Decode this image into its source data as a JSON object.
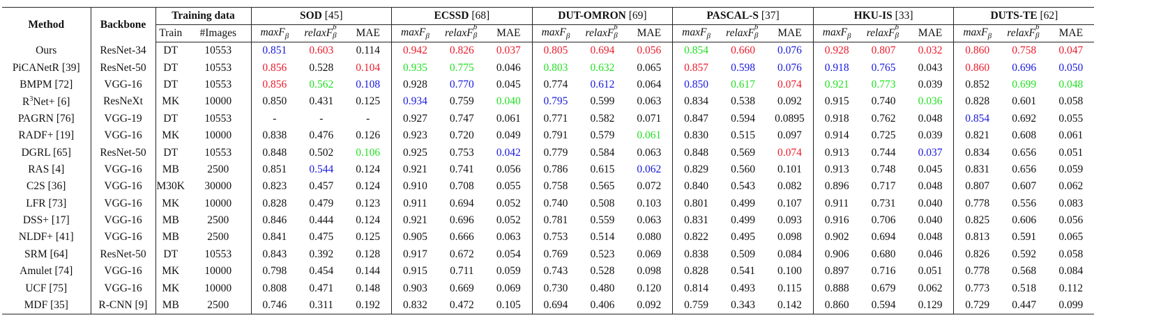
{
  "colors": {
    "r": "#ee1a2a",
    "g": "#22e022",
    "b": "#1818dd"
  },
  "header": {
    "method": "Method",
    "backbone": "Backbone",
    "training_data": "Training data",
    "train": "Train",
    "images": "#Images",
    "metrics": [
      {
        "main": "maxF",
        "sub": "β"
      },
      {
        "main": "relaxF",
        "sup": "b",
        "sub": "β"
      },
      {
        "main": "MAE"
      }
    ],
    "datasets": [
      {
        "name": "SOD",
        "ref": "[45]"
      },
      {
        "name": "ECSSD",
        "ref": "[68]"
      },
      {
        "name": "DUT-OMRON",
        "ref": "[69]"
      },
      {
        "name": "PASCAL-S",
        "ref": "[37]"
      },
      {
        "name": "HKU-IS",
        "ref": "[33]"
      },
      {
        "name": "DUTS-TE",
        "ref": "[62]"
      }
    ]
  },
  "rows": [
    {
      "method": {
        "pre": "Ours"
      },
      "backbone": "ResNet-34",
      "train": "DT",
      "images": "10553",
      "scores": [
        {
          "v": "0.851",
          "c": "b"
        },
        {
          "v": "0.603",
          "c": "r"
        },
        "0.114",
        {
          "v": "0.942",
          "c": "r"
        },
        {
          "v": "0.826",
          "c": "r"
        },
        {
          "v": "0.037",
          "c": "r"
        },
        {
          "v": "0.805",
          "c": "r"
        },
        {
          "v": "0.694",
          "c": "r"
        },
        {
          "v": "0.056",
          "c": "r"
        },
        {
          "v": "0.854",
          "c": "g"
        },
        {
          "v": "0.660",
          "c": "r"
        },
        {
          "v": "0.076",
          "c": "b"
        },
        {
          "v": "0.928",
          "c": "r"
        },
        {
          "v": "0.807",
          "c": "r"
        },
        {
          "v": "0.032",
          "c": "r"
        },
        {
          "v": "0.860",
          "c": "r"
        },
        {
          "v": "0.758",
          "c": "r"
        },
        {
          "v": "0.047",
          "c": "r"
        }
      ]
    },
    {
      "method": {
        "pre": "PiCANetR [39]"
      },
      "backbone": "ResNet-50",
      "train": "DT",
      "images": "10553",
      "scores": [
        {
          "v": "0.856",
          "c": "r"
        },
        "0.528",
        {
          "v": "0.104",
          "c": "r"
        },
        {
          "v": "0.935",
          "c": "g"
        },
        {
          "v": "0.775",
          "c": "g"
        },
        "0.046",
        {
          "v": "0.803",
          "c": "g"
        },
        {
          "v": "0.632",
          "c": "g"
        },
        "0.065",
        {
          "v": "0.857",
          "c": "r"
        },
        {
          "v": "0.598",
          "c": "b"
        },
        {
          "v": "0.076",
          "c": "b"
        },
        {
          "v": "0.918",
          "c": "b"
        },
        {
          "v": "0.765",
          "c": "b"
        },
        "0.043",
        {
          "v": "0.860",
          "c": "r"
        },
        {
          "v": "0.696",
          "c": "b"
        },
        {
          "v": "0.050",
          "c": "b"
        }
      ]
    },
    {
      "method": {
        "pre": "BMPM [72]"
      },
      "backbone": "VGG-16",
      "train": "DT",
      "images": "10553",
      "scores": [
        {
          "v": "0.856",
          "c": "r"
        },
        {
          "v": "0.562",
          "c": "g"
        },
        {
          "v": "0.108",
          "c": "b"
        },
        "0.928",
        {
          "v": "0.770",
          "c": "b"
        },
        "0.045",
        "0.774",
        {
          "v": "0.612",
          "c": "b"
        },
        "0.064",
        {
          "v": "0.850",
          "c": "b"
        },
        {
          "v": "0.617",
          "c": "g"
        },
        {
          "v": "0.074",
          "c": "r"
        },
        {
          "v": "0.921",
          "c": "g"
        },
        {
          "v": "0.773",
          "c": "g"
        },
        "0.039",
        "0.852",
        {
          "v": "0.699",
          "c": "g"
        },
        {
          "v": "0.048",
          "c": "g"
        }
      ]
    },
    {
      "method": {
        "pre": "R",
        "sup": "3",
        "post": "Net+ [6]"
      },
      "backbone": "ResNeXt",
      "train": "MK",
      "images": "10000",
      "scores": [
        "0.850",
        "0.431",
        "0.125",
        {
          "v": "0.934",
          "c": "b"
        },
        "0.759",
        {
          "v": "0.040",
          "c": "g"
        },
        {
          "v": "0.795",
          "c": "b"
        },
        "0.599",
        "0.063",
        "0.834",
        "0.538",
        "0.092",
        "0.915",
        "0.740",
        {
          "v": "0.036",
          "c": "g"
        },
        "0.828",
        "0.601",
        "0.058"
      ]
    },
    {
      "method": {
        "pre": "PAGRN [76]"
      },
      "backbone": "VGG-19",
      "train": "DT",
      "images": "10553",
      "scores": [
        "-",
        "-",
        "-",
        "0.927",
        "0.747",
        "0.061",
        "0.771",
        "0.582",
        "0.071",
        "0.847",
        "0.594",
        "0.0895",
        "0.918",
        "0.762",
        "0.048",
        {
          "v": "0.854",
          "c": "b"
        },
        "0.692",
        "0.055"
      ]
    },
    {
      "method": {
        "pre": "RADF+ [19]"
      },
      "backbone": "VGG-16",
      "train": "MK",
      "images": "10000",
      "scores": [
        "0.838",
        "0.476",
        "0.126",
        "0.923",
        "0.720",
        "0.049",
        "0.791",
        "0.579",
        {
          "v": "0.061",
          "c": "g"
        },
        "0.830",
        "0.515",
        "0.097",
        "0.914",
        "0.725",
        "0.039",
        "0.821",
        "0.608",
        "0.061"
      ]
    },
    {
      "method": {
        "pre": "DGRL [65]"
      },
      "backbone": "ResNet-50",
      "train": "DT",
      "images": "10553",
      "scores": [
        "0.848",
        "0.502",
        {
          "v": "0.106",
          "c": "g"
        },
        "0.925",
        "0.753",
        {
          "v": "0.042",
          "c": "b"
        },
        "0.779",
        "0.584",
        "0.063",
        "0.848",
        "0.569",
        {
          "v": "0.074",
          "c": "r"
        },
        "0.913",
        "0.744",
        {
          "v": "0.037",
          "c": "b"
        },
        "0.834",
        "0.656",
        "0.051"
      ]
    },
    {
      "method": {
        "pre": "RAS [4]"
      },
      "backbone": "VGG-16",
      "train": "MB",
      "images": "2500",
      "scores": [
        "0.851",
        {
          "v": "0.544",
          "c": "b"
        },
        "0.124",
        "0.921",
        "0.741",
        "0.056",
        "0.786",
        "0.615",
        {
          "v": "0.062",
          "c": "b"
        },
        "0.829",
        "0.560",
        "0.101",
        "0.913",
        "0.748",
        "0.045",
        "0.831",
        "0.656",
        "0.059"
      ]
    },
    {
      "method": {
        "pre": "C2S [36]"
      },
      "backbone": "VGG-16",
      "train": "M30K",
      "images": "30000",
      "scores": [
        "0.823",
        "0.457",
        "0.124",
        "0.910",
        "0.708",
        "0.055",
        "0.758",
        "0.565",
        "0.072",
        "0.840",
        "0.543",
        "0.082",
        "0.896",
        "0.717",
        "0.048",
        "0.807",
        "0.607",
        "0.062"
      ]
    },
    {
      "method": {
        "pre": "LFR [73]"
      },
      "backbone": "VGG-16",
      "train": "MK",
      "images": "10000",
      "scores": [
        "0.828",
        "0.479",
        "0.123",
        "0.911",
        "0.694",
        "0.052",
        "0.740",
        "0.508",
        "0.103",
        "0.801",
        "0.499",
        "0.107",
        "0.911",
        "0.731",
        "0.040",
        "0.778",
        "0.556",
        "0.083"
      ]
    },
    {
      "method": {
        "pre": "DSS+ [17]"
      },
      "backbone": "VGG-16",
      "train": "MB",
      "images": "2500",
      "scores": [
        "0.846",
        "0.444",
        "0.124",
        "0.921",
        "0.696",
        "0.052",
        "0.781",
        "0.559",
        "0.063",
        "0.831",
        "0.499",
        "0.093",
        "0.916",
        "0.706",
        "0.040",
        "0.825",
        "0.606",
        "0.056"
      ]
    },
    {
      "method": {
        "pre": "NLDF+ [41]"
      },
      "backbone": "VGG-16",
      "train": "MB",
      "images": "2500",
      "scores": [
        "0.841",
        "0.475",
        "0.125",
        "0.905",
        "0.666",
        "0.063",
        "0.753",
        "0.514",
        "0.080",
        "0.822",
        "0.495",
        "0.098",
        "0.902",
        "0.694",
        "0.048",
        "0.813",
        "0.591",
        "0.065"
      ]
    },
    {
      "method": {
        "pre": "SRM [64]"
      },
      "backbone": "ResNet-50",
      "train": "DT",
      "images": "10553",
      "scores": [
        "0.843",
        "0.392",
        "0.128",
        "0.917",
        "0.672",
        "0.054",
        "0.769",
        "0.523",
        "0.069",
        "0.838",
        "0.509",
        "0.084",
        "0.906",
        "0.680",
        "0.046",
        "0.826",
        "0.592",
        "0.058"
      ]
    },
    {
      "method": {
        "pre": "Amulet [74]"
      },
      "backbone": "VGG-16",
      "train": "MK",
      "images": "10000",
      "scores": [
        "0.798",
        "0.454",
        "0.144",
        "0.915",
        "0.711",
        "0.059",
        "0.743",
        "0.528",
        "0.098",
        "0.828",
        "0.541",
        "0.100",
        "0.897",
        "0.716",
        "0.051",
        "0.778",
        "0.568",
        "0.084"
      ]
    },
    {
      "method": {
        "pre": "UCF [75]"
      },
      "backbone": "VGG-16",
      "train": "MK",
      "images": "10000",
      "scores": [
        "0.808",
        "0.471",
        "0.148",
        "0.903",
        "0.669",
        "0.069",
        "0.730",
        "0.480",
        "0.120",
        "0.814",
        "0.493",
        "0.115",
        "0.888",
        "0.679",
        "0.062",
        "0.773",
        "0.518",
        "0.112"
      ]
    },
    {
      "method": {
        "pre": "MDF [35]"
      },
      "backbone": "R-CNN [9]",
      "train": "MB",
      "images": "2500",
      "scores": [
        "0.746",
        "0.311",
        "0.192",
        "0.832",
        "0.472",
        "0.105",
        "0.694",
        "0.406",
        "0.092",
        "0.759",
        "0.343",
        "0.142",
        "0.860",
        "0.594",
        "0.129",
        "0.729",
        "0.447",
        "0.099"
      ]
    }
  ]
}
